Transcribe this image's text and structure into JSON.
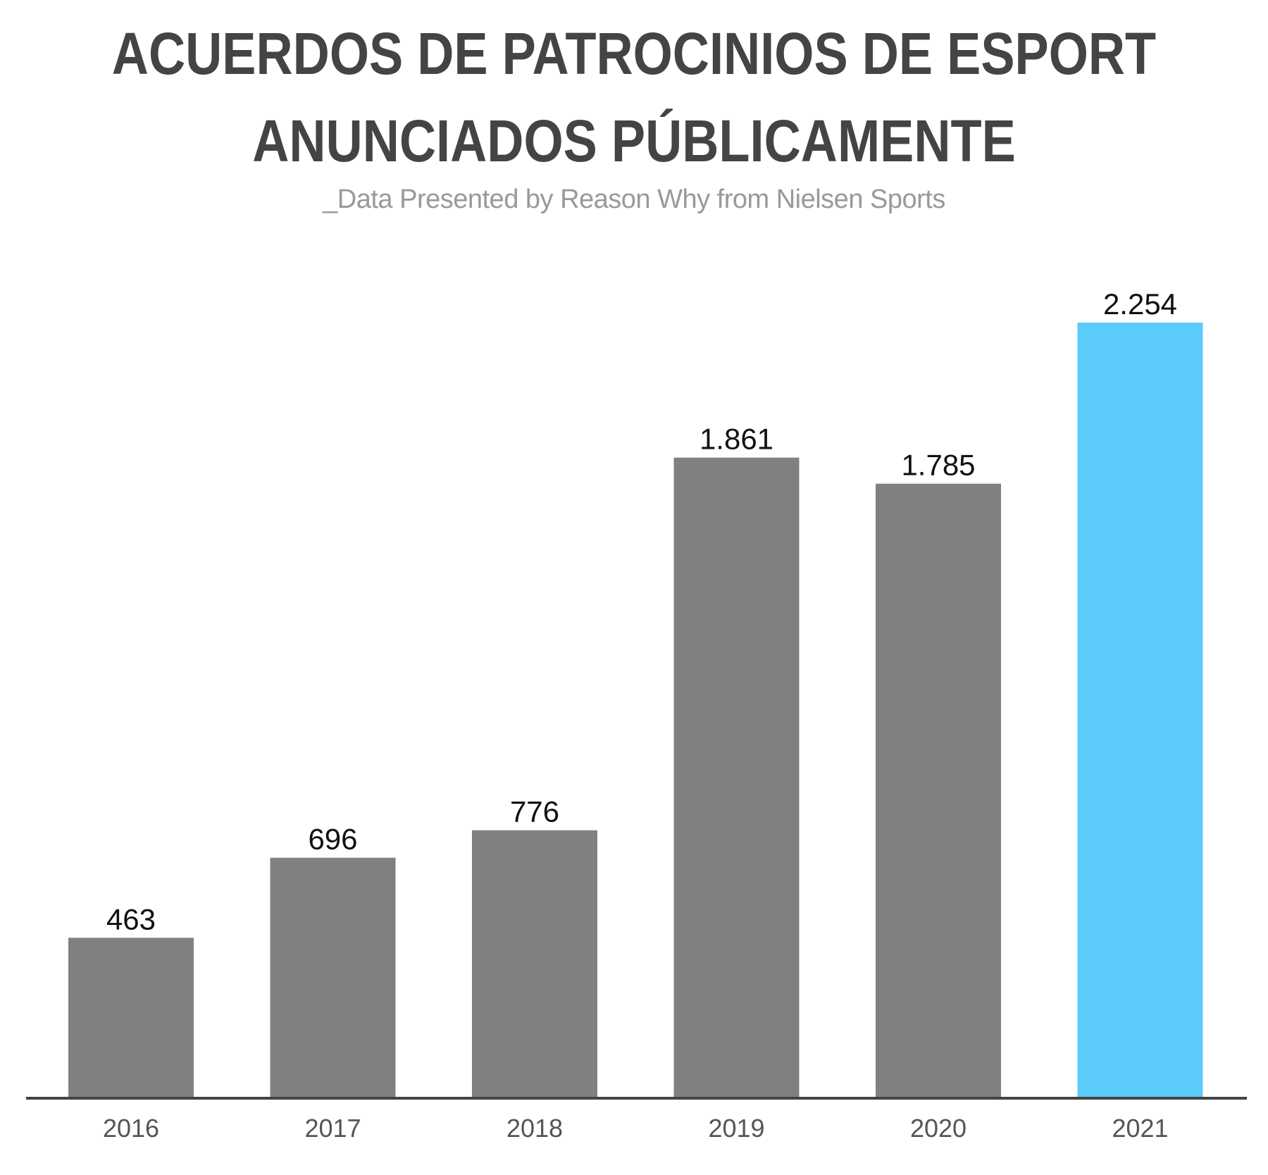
{
  "chart_data": {
    "type": "bar",
    "title": "ACUERDOS DE PATROCINIOS DE ESPORT ANUNCIADOS PÚBLICAMENTE",
    "title_lines": [
      "ACUERDOS DE PATROCINIOS DE ESPORT",
      "ANUNCIADOS PÚBLICAMENTE"
    ],
    "subtitle": "_Data Presented by Reason Why from Nielsen Sports",
    "xlabel": "",
    "ylabel": "",
    "categories": [
      "2016",
      "2017",
      "2018",
      "2019",
      "2020",
      "2021"
    ],
    "values": [
      463,
      696,
      776,
      1861,
      1785,
      2254
    ],
    "value_labels": [
      "463",
      "696",
      "776",
      "1.861",
      "1.785",
      "2.254"
    ],
    "ylim": [
      0,
      2254
    ],
    "grid": false,
    "legend": "none",
    "colors": {
      "bar": "#808080",
      "highlight": "#5bcbfc",
      "axis": "#444444"
    },
    "highlight_index": 5
  }
}
